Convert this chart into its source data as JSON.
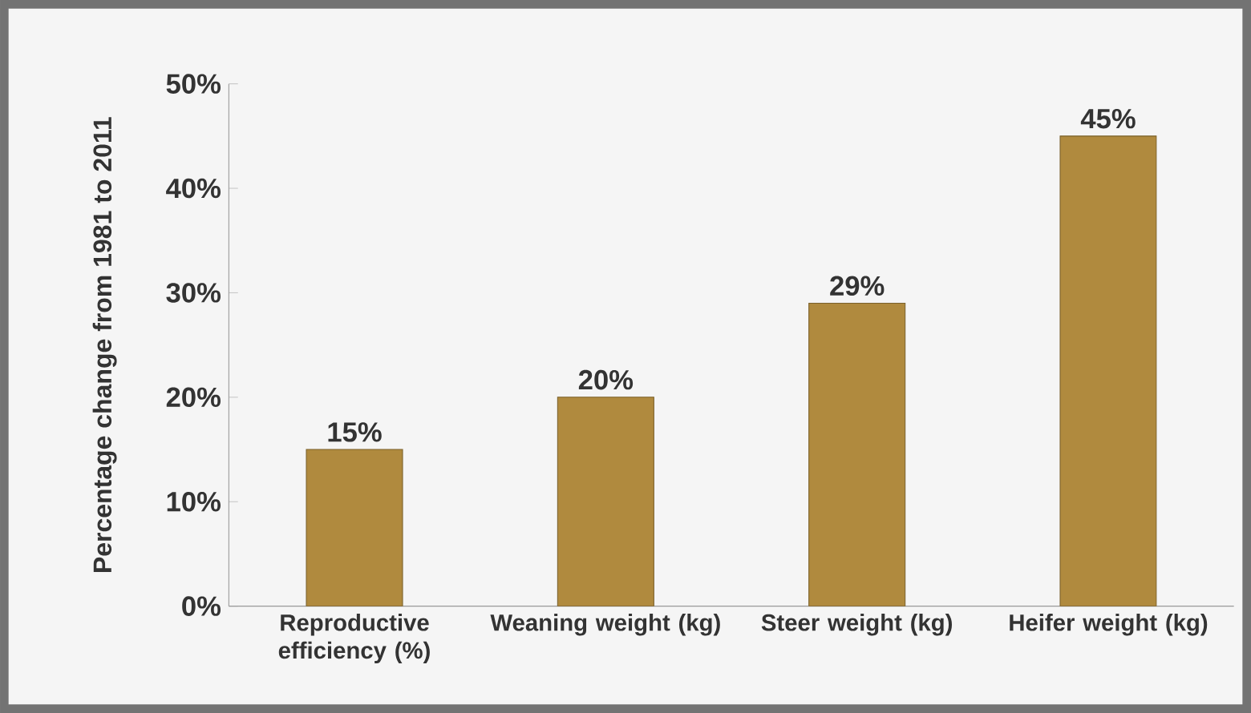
{
  "chart_data": {
    "type": "bar",
    "ylabel": "Percentage change from 1981 to 2011",
    "categories": [
      "Reproductive efficiency (%)",
      "Weaning weight (kg)",
      "Steer weight (kg)",
      "Heifer weight (kg)"
    ],
    "values": [
      15,
      20,
      29,
      45
    ],
    "value_labels": [
      "15%",
      "20%",
      "29%",
      "45%"
    ],
    "color": "#b08a3e",
    "ylim": [
      0,
      50
    ],
    "yticks": [
      {
        "value": 0,
        "label": "0%"
      },
      {
        "value": 10,
        "label": "10%"
      },
      {
        "value": 20,
        "label": "20%"
      },
      {
        "value": 30,
        "label": "30%"
      },
      {
        "value": 40,
        "label": "40%"
      },
      {
        "value": 50,
        "label": "50%"
      }
    ],
    "grid": false
  }
}
